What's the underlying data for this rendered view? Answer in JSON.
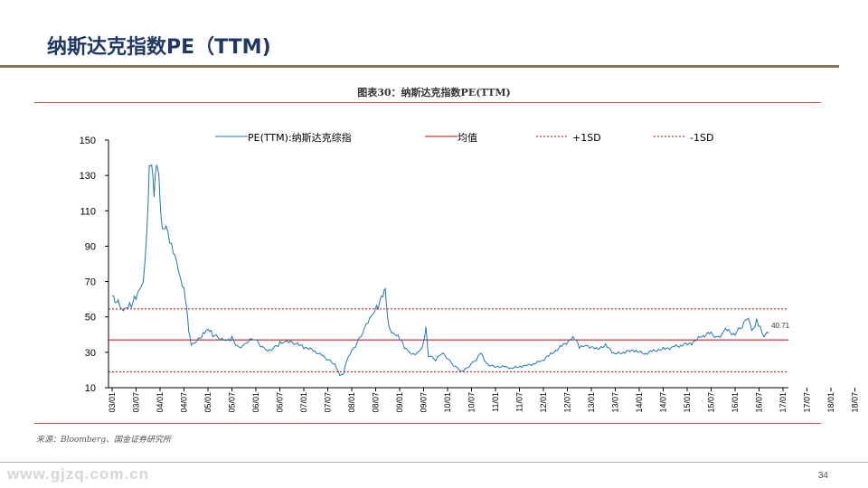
{
  "slide": {
    "title": "纳斯达克指数PE（TTM)",
    "figure_caption": "图表30：纳斯达克指数PE(TTM)",
    "source": "来源：Bloomberg、国金证券研究所",
    "page_number": "34",
    "watermark": "www.gjzq.com.cn"
  },
  "colors": {
    "title": "#1f3864",
    "pe_line": "#1f77b4",
    "mean_line": "#c00000",
    "sd_lines": "#c00000"
  },
  "chart_data": {
    "type": "line",
    "title": "",
    "xlabel": "",
    "ylabel": "",
    "ylim": [
      10,
      150
    ],
    "y_ticks": [
      150,
      130,
      110,
      90,
      70,
      50,
      30,
      10
    ],
    "x_ticks": [
      "03/01",
      "03/07",
      "04/01",
      "04/07",
      "05/01",
      "05/07",
      "06/01",
      "06/07",
      "07/01",
      "07/07",
      "08/01",
      "08/07",
      "09/01",
      "09/07",
      "10/01",
      "10/07",
      "11/01",
      "11/07",
      "12/01",
      "12/07",
      "13/01",
      "13/07",
      "14/01",
      "14/07",
      "15/01",
      "15/07",
      "16/01",
      "16/07",
      "17/01",
      "17/07",
      "18/01",
      "18/07"
    ],
    "legend": [
      "PE(TTM):纳斯达克综指",
      "均值",
      "+1SD",
      "-1SD"
    ],
    "legend_position": "top",
    "grid": false,
    "reference_lines": {
      "mean": 37,
      "plus_1sd": 54.5,
      "minus_1sd": 19
    },
    "end_label": "40.71",
    "series": [
      {
        "name": "PE(TTM):纳斯达克综指",
        "points": [
          [
            0,
            62
          ],
          [
            0.25,
            58
          ],
          [
            0.4,
            53
          ],
          [
            0.6,
            55
          ],
          [
            0.8,
            57
          ],
          [
            1.0,
            62
          ],
          [
            1.15,
            66
          ],
          [
            1.3,
            68
          ],
          [
            1.45,
            95
          ],
          [
            1.55,
            134
          ],
          [
            1.65,
            139
          ],
          [
            1.75,
            122
          ],
          [
            1.85,
            138
          ],
          [
            1.95,
            128
          ],
          [
            2.05,
            102
          ],
          [
            2.15,
            98
          ],
          [
            2.25,
            103
          ],
          [
            2.4,
            95
          ],
          [
            2.55,
            88
          ],
          [
            2.7,
            80
          ],
          [
            2.85,
            70
          ],
          [
            3.0,
            65
          ],
          [
            3.1,
            57
          ],
          [
            3.2,
            43
          ],
          [
            3.3,
            35
          ],
          [
            3.45,
            35
          ],
          [
            3.6,
            37
          ],
          [
            3.8,
            40
          ],
          [
            4.0,
            43
          ],
          [
            4.2,
            40
          ],
          [
            4.5,
            38
          ],
          [
            4.8,
            37
          ],
          [
            5.0,
            38
          ],
          [
            5.3,
            32
          ],
          [
            5.6,
            35
          ],
          [
            5.9,
            38
          ],
          [
            6.2,
            34
          ],
          [
            6.5,
            31
          ],
          [
            6.8,
            33
          ],
          [
            7.0,
            35
          ],
          [
            7.3,
            36
          ],
          [
            7.6,
            35
          ],
          [
            8.0,
            33
          ],
          [
            8.4,
            31
          ],
          [
            8.8,
            28
          ],
          [
            9.1,
            25
          ],
          [
            9.3,
            23
          ],
          [
            9.5,
            17
          ],
          [
            9.65,
            18
          ],
          [
            9.8,
            26
          ],
          [
            10.0,
            31
          ],
          [
            10.3,
            37
          ],
          [
            10.6,
            45
          ],
          [
            10.9,
            52
          ],
          [
            11.1,
            56
          ],
          [
            11.3,
            63
          ],
          [
            11.4,
            66
          ],
          [
            11.5,
            48
          ],
          [
            11.6,
            42
          ],
          [
            11.8,
            40
          ],
          [
            12.0,
            38
          ],
          [
            12.2,
            33
          ],
          [
            12.5,
            29
          ],
          [
            12.8,
            30
          ],
          [
            13.0,
            35
          ],
          [
            13.1,
            44
          ],
          [
            13.2,
            28
          ],
          [
            13.5,
            26
          ],
          [
            13.8,
            30
          ],
          [
            14.1,
            25
          ],
          [
            14.4,
            21
          ],
          [
            14.6,
            19
          ],
          [
            14.9,
            22
          ],
          [
            15.2,
            26
          ],
          [
            15.4,
            30
          ],
          [
            15.6,
            24
          ],
          [
            15.9,
            22
          ],
          [
            16.3,
            22
          ],
          [
            16.7,
            21
          ],
          [
            17.1,
            22
          ],
          [
            17.5,
            23
          ],
          [
            17.9,
            25
          ],
          [
            18.3,
            29
          ],
          [
            18.7,
            33
          ],
          [
            19.1,
            37
          ],
          [
            19.3,
            38
          ],
          [
            19.5,
            33
          ],
          [
            19.8,
            34
          ],
          [
            20.2,
            32
          ],
          [
            20.6,
            34
          ],
          [
            21.0,
            29
          ],
          [
            21.4,
            30
          ],
          [
            21.8,
            31
          ],
          [
            22.2,
            29
          ],
          [
            22.6,
            31
          ],
          [
            23.0,
            32
          ],
          [
            23.4,
            33
          ],
          [
            23.8,
            34
          ],
          [
            24.2,
            35
          ],
          [
            24.6,
            39
          ],
          [
            25.0,
            41
          ],
          [
            25.3,
            38
          ],
          [
            25.6,
            43
          ],
          [
            26.0,
            40
          ],
          [
            26.3,
            45
          ],
          [
            26.55,
            50
          ],
          [
            26.7,
            42
          ],
          [
            26.9,
            48
          ],
          [
            27.05,
            44
          ],
          [
            27.2,
            39
          ],
          [
            27.4,
            40.71
          ]
        ]
      }
    ]
  }
}
